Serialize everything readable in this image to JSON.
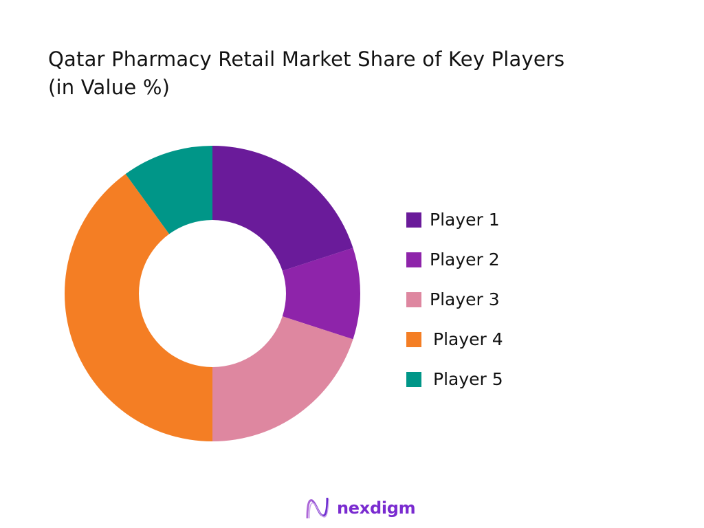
{
  "title": {
    "line1": "Qatar Pharmacy Retail Market Share of Key Players",
    "line2": "(in Value %)"
  },
  "chart_data": {
    "type": "pie",
    "variant": "donut",
    "title": "Qatar Pharmacy Retail Market Share of Key Players (in Value %)",
    "categories": [
      "Player 1",
      "Player 2",
      "Player 3",
      "Player 4",
      "Player 5"
    ],
    "values": [
      20,
      10,
      20,
      40,
      10
    ],
    "unit": "%",
    "colors": [
      "#6a1b9a",
      "#8e24aa",
      "#de87a0",
      "#f47e24",
      "#009688"
    ],
    "start_angle": "12 o'clock",
    "direction": "clockwise",
    "legend_position": "right",
    "data_labels": false
  },
  "legend": [
    {
      "label": "Player 1",
      "color": "#6a1b9a"
    },
    {
      "label": "Player 2",
      "color": "#8e24aa"
    },
    {
      "label": "Player 3",
      "color": "#de87a0"
    },
    {
      "label": "Player 4",
      "color": "#f47e24"
    },
    {
      "label": "Player 5",
      "color": "#009688"
    }
  ],
  "branding": {
    "logo_text": "nexdigm"
  }
}
